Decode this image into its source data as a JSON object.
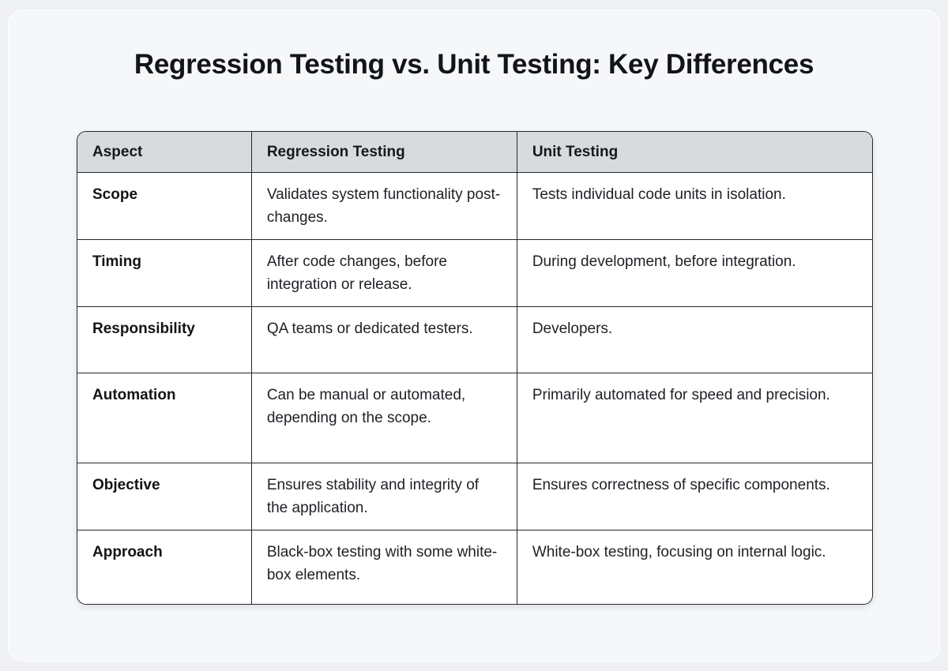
{
  "page": {
    "title": "Regression Testing vs. Unit Testing: Key Differences"
  },
  "table": {
    "headers": {
      "aspect": "Aspect",
      "regression": "Regression Testing",
      "unit": "Unit Testing"
    },
    "rows": [
      {
        "aspect": "Scope",
        "regression": "Validates system functionality post-changes.",
        "unit": "Tests individual code units in isolation."
      },
      {
        "aspect": "Timing",
        "regression": "After code changes, before integration or release.",
        "unit": "During development, before integration."
      },
      {
        "aspect": "Responsibility",
        "regression": "QA teams or dedicated testers.",
        "unit": "Developers."
      },
      {
        "aspect": "Automation",
        "regression": "Can be manual or automated, depending on the scope.",
        "unit": "Primarily automated for speed and precision."
      },
      {
        "aspect": "Objective",
        "regression": "Ensures stability and integrity of the application.",
        "unit": "Ensures correctness of specific components."
      },
      {
        "aspect": "Approach",
        "regression": "Black-box testing with some white-box elements.",
        "unit": "White-box testing, focusing on internal logic."
      }
    ],
    "colors": {
      "header_bg": "#d8dbde",
      "border": "#24272c",
      "cell_bg": "#ffffff",
      "page_bg": "#f5f7f9",
      "text": "#1d2025"
    }
  }
}
